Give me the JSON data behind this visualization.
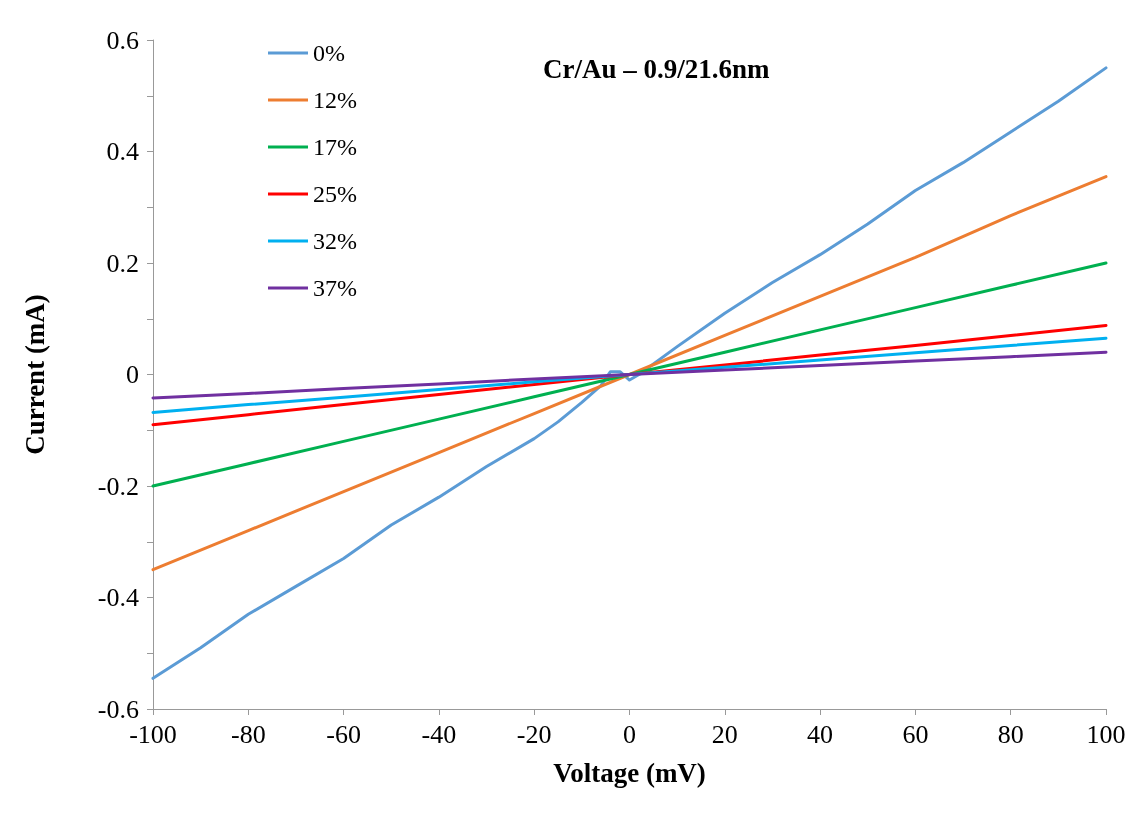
{
  "chart_data": {
    "type": "line",
    "title": "Cr/Au – 0.9/21.6nm",
    "xlabel": "Voltage (mV)",
    "ylabel": "Current (mA)",
    "x": [
      -100,
      -80,
      -60,
      -40,
      -20,
      0,
      20,
      40,
      60,
      80,
      100
    ],
    "series": [
      {
        "name": "0%",
        "color": "#5b9bd5",
        "x": [
          -100,
          -90,
          -80,
          -70,
          -60,
          -50,
          -40,
          -30,
          -20,
          -15,
          -10,
          -6,
          -4,
          -2,
          0,
          2,
          10,
          20,
          30,
          40,
          50,
          60,
          70,
          80,
          90,
          100
        ],
        "values": [
          -0.545,
          -0.49,
          -0.43,
          -0.38,
          -0.33,
          -0.27,
          -0.22,
          -0.165,
          -0.115,
          -0.085,
          -0.05,
          -0.02,
          0.005,
          0.005,
          -0.01,
          0.0,
          0.05,
          0.11,
          0.165,
          0.215,
          0.27,
          0.33,
          0.38,
          0.435,
          0.49,
          0.55
        ]
      },
      {
        "name": "12%",
        "color": "#ed7d31",
        "values": [
          -0.35,
          -0.28,
          -0.21,
          -0.14,
          -0.07,
          0,
          0.07,
          0.14,
          0.21,
          0.285,
          0.355
        ]
      },
      {
        "name": "17%",
        "color": "#00b050",
        "values": [
          -0.2,
          -0.16,
          -0.12,
          -0.08,
          -0.04,
          0,
          0.04,
          0.08,
          0.12,
          0.16,
          0.2
        ]
      },
      {
        "name": "25%",
        "color": "#ff0000",
        "values": [
          -0.09,
          -0.072,
          -0.054,
          -0.036,
          -0.018,
          0,
          0.017,
          0.035,
          0.052,
          0.07,
          0.088
        ]
      },
      {
        "name": "32%",
        "color": "#00b0f0",
        "values": [
          -0.068,
          -0.054,
          -0.041,
          -0.027,
          -0.013,
          0,
          0.013,
          0.026,
          0.039,
          0.052,
          0.065
        ]
      },
      {
        "name": "37%",
        "color": "#7030a0",
        "values": [
          -0.042,
          -0.034,
          -0.025,
          -0.017,
          -0.008,
          0,
          0.008,
          0.016,
          0.024,
          0.032,
          0.04
        ]
      }
    ],
    "xlim": [
      -100,
      100
    ],
    "xticks": [
      -100,
      -80,
      -60,
      -40,
      -20,
      0,
      20,
      40,
      60,
      80,
      100
    ],
    "ylim": [
      -0.6,
      0.6
    ],
    "yticks": [
      -0.6,
      {
        "value": -0.5,
        "label": null
      },
      -0.4,
      {
        "value": -0.3,
        "label": null
      },
      -0.2,
      {
        "value": -0.1,
        "label": null
      },
      0,
      {
        "value": 0.1,
        "label": null
      },
      0.2,
      {
        "value": 0.3,
        "label": null
      },
      0.4,
      {
        "value": 0.5,
        "label": null
      },
      0.6
    ],
    "grid": false,
    "legend": "top left",
    "marker": "none",
    "line_style": "solid"
  }
}
